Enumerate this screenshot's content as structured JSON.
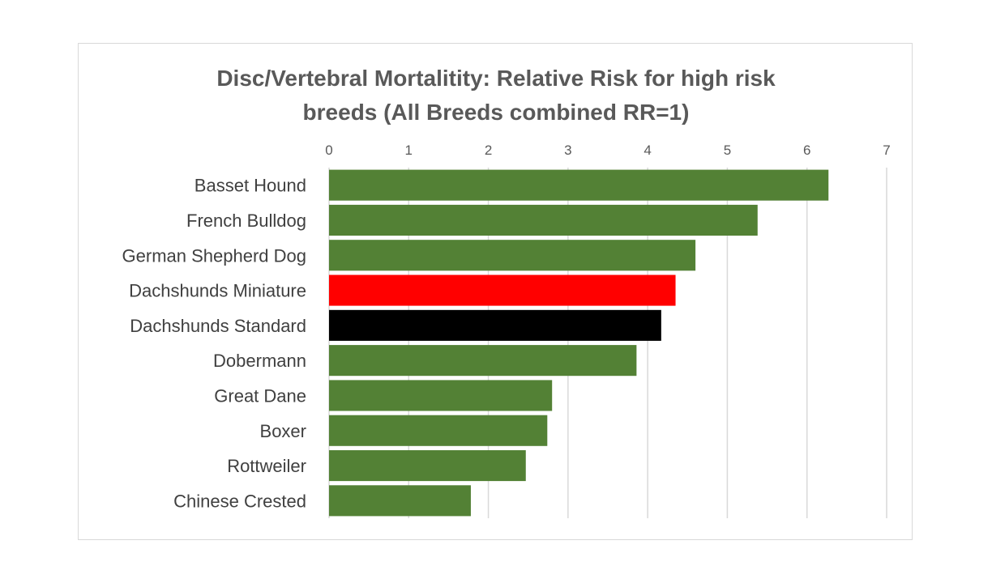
{
  "chart_data": {
    "type": "bar",
    "orientation": "horizontal",
    "title_lines": [
      "Disc/Vertebral Mortalitity: Relative Risk for high risk",
      "breeds (All Breeds combined RR=1)"
    ],
    "xlabel": "",
    "ylabel": "",
    "xlim": [
      0,
      7
    ],
    "x_ticks": [
      0,
      1,
      2,
      3,
      4,
      5,
      6,
      7
    ],
    "x_axis_position": "top",
    "grid": true,
    "legend": "none",
    "categories": [
      "Basset Hound",
      "French Bulldog",
      "German Shepherd Dog",
      "Dachshunds Miniature",
      "Dachshunds Standard",
      "Dobermann",
      "Great Dane",
      "Boxer",
      "Rottweiler",
      "Chinese Crested"
    ],
    "values": [
      6.27,
      5.38,
      4.6,
      4.35,
      4.17,
      3.86,
      2.8,
      2.74,
      2.47,
      1.78
    ],
    "colors": [
      "#538135",
      "#538135",
      "#538135",
      "#ff0000",
      "#000000",
      "#538135",
      "#538135",
      "#538135",
      "#538135",
      "#538135"
    ],
    "grid_color": "#d9d9d9"
  }
}
